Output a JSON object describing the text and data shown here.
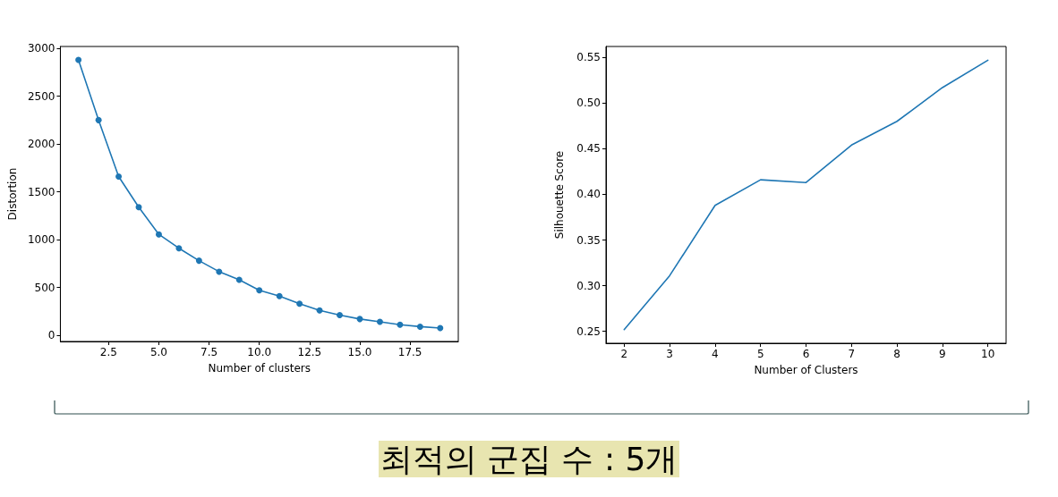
{
  "chart_data": [
    {
      "type": "line",
      "xlabel": "Number of clusters",
      "ylabel": "Distortion",
      "marker": "circle",
      "x": [
        1,
        2,
        3,
        4,
        5,
        6,
        7,
        8,
        9,
        10,
        11,
        12,
        13,
        14,
        15,
        16,
        17,
        18,
        19
      ],
      "series": [
        {
          "color": "#1f77b4",
          "values": [
            2880,
            2250,
            1660,
            1340,
            1055,
            910,
            780,
            665,
            580,
            470,
            410,
            330,
            260,
            210,
            170,
            140,
            110,
            90,
            75
          ]
        }
      ],
      "xlim": [
        0.1,
        19.9
      ],
      "xticks": [
        {
          "value": 2.5,
          "label": "2.5"
        },
        {
          "value": 5,
          "label": "5.0"
        },
        {
          "value": 7.5,
          "label": "7.5"
        },
        {
          "value": 10,
          "label": "10.0"
        },
        {
          "value": 12.5,
          "label": "12.5"
        },
        {
          "value": 15,
          "label": "15.0"
        },
        {
          "value": 17.5,
          "label": "17.5"
        }
      ],
      "ylim": [
        -65,
        3020
      ],
      "yticks": [
        0,
        500,
        1000,
        1500,
        2000,
        2500,
        3000
      ]
    },
    {
      "type": "line",
      "xlabel": "Number of Clusters",
      "ylabel": "Silhouette Score",
      "marker": "none",
      "x": [
        2,
        3,
        4,
        5,
        6,
        7,
        8,
        9,
        10
      ],
      "series": [
        {
          "color": "#1f77b4",
          "values": [
            0.252,
            0.311,
            0.388,
            0.416,
            0.413,
            0.454,
            0.48,
            0.517,
            0.547
          ]
        }
      ],
      "xlim": [
        1.6,
        10.4
      ],
      "xticks": [
        2,
        3,
        4,
        5,
        6,
        7,
        8,
        9,
        10
      ],
      "ylim": [
        0.237,
        0.562
      ],
      "yticks": [
        {
          "value": 0.25,
          "label": "0.25"
        },
        {
          "value": 0.3,
          "label": "0.30"
        },
        {
          "value": 0.35,
          "label": "0.35"
        },
        {
          "value": 0.4,
          "label": "0.40"
        },
        {
          "value": 0.45,
          "label": "0.45"
        },
        {
          "value": 0.5,
          "label": "0.50"
        },
        {
          "value": 0.55,
          "label": "0.55"
        }
      ],
      "annotations": [
        "최적의 군집 수 : 5개"
      ]
    }
  ]
}
